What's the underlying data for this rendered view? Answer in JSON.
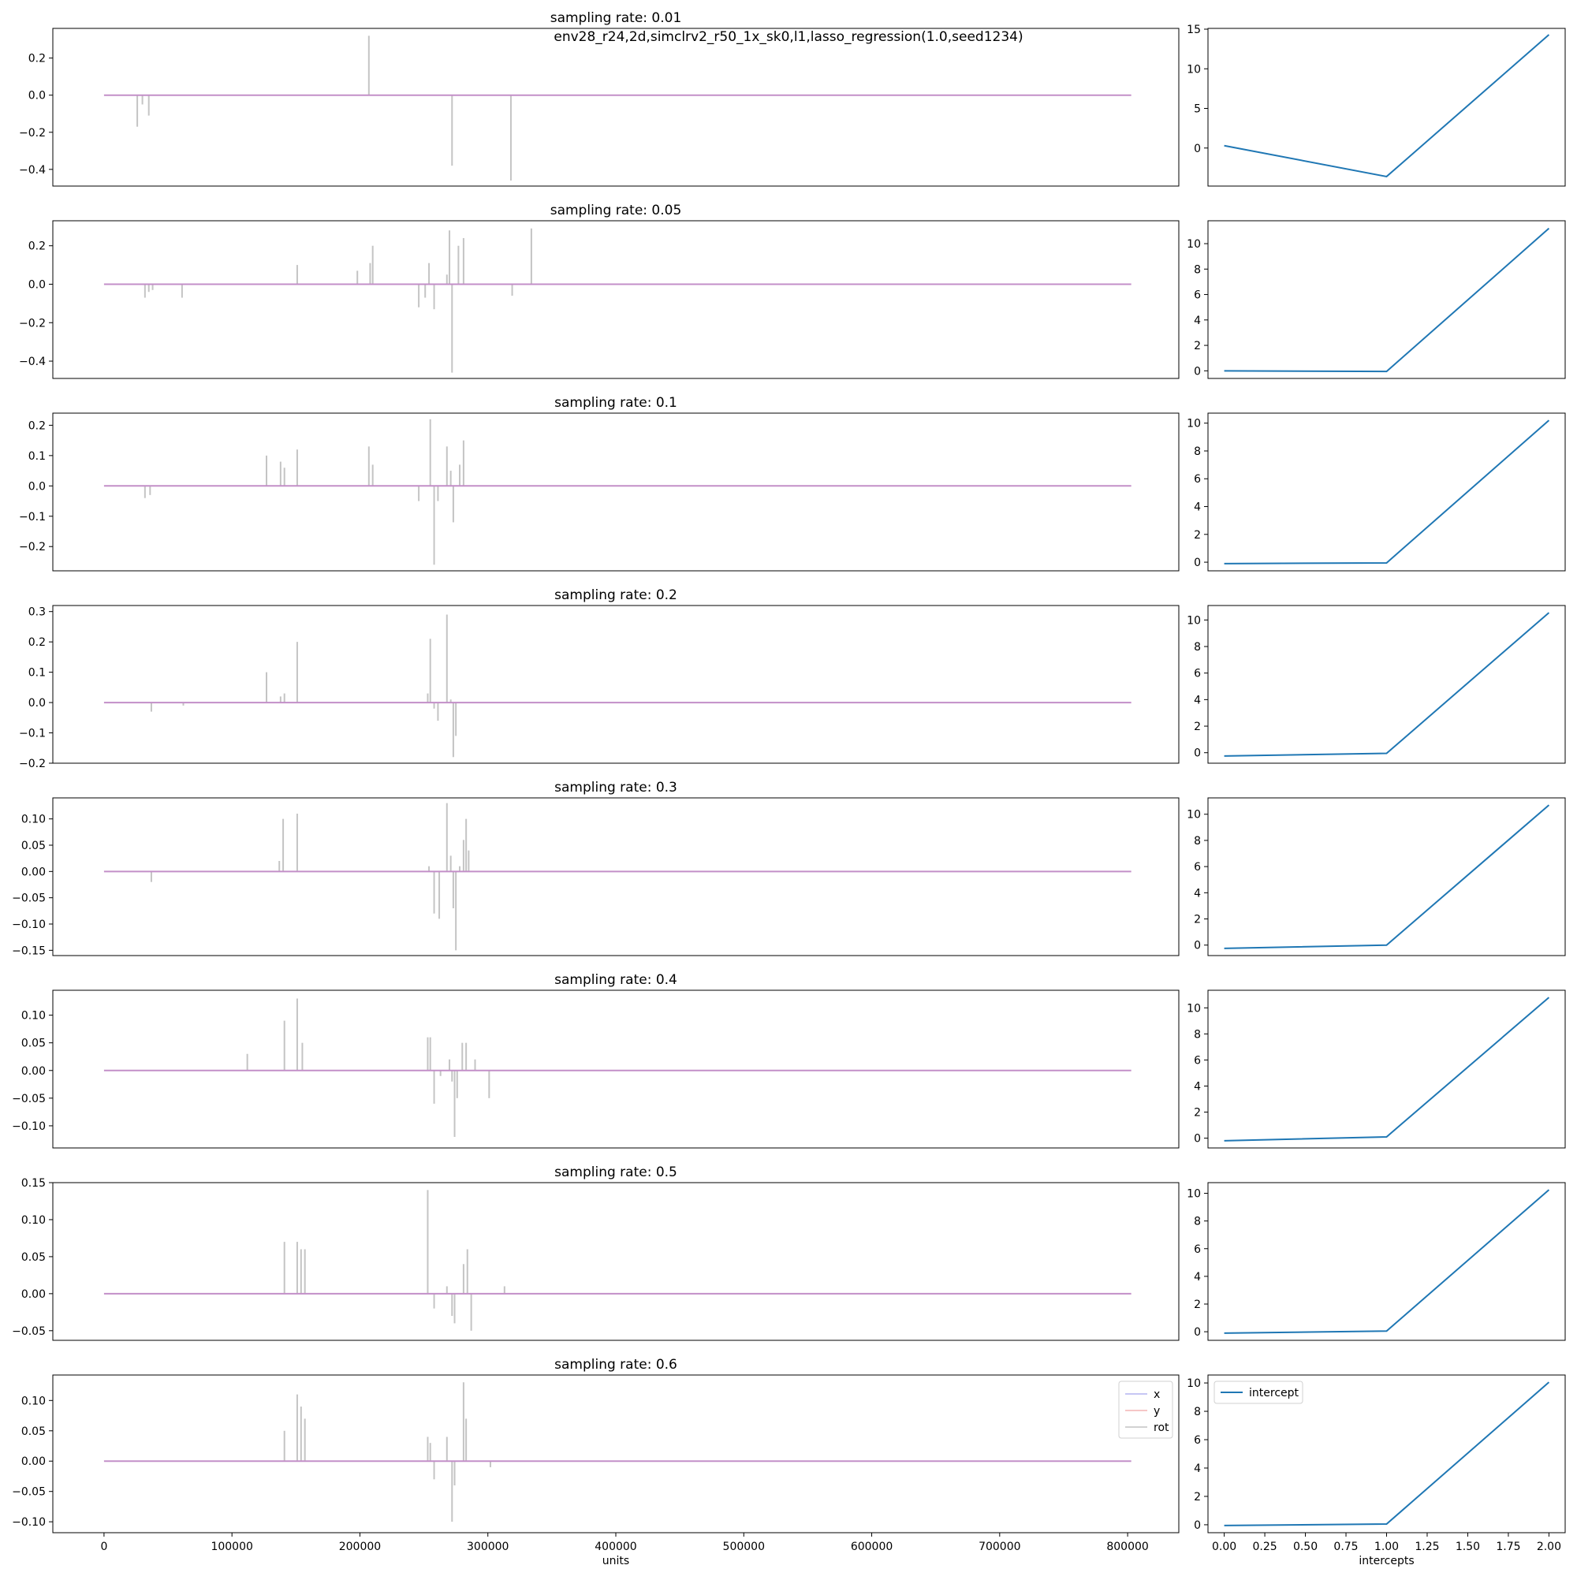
{
  "figure": {
    "suptitle": "env28_r24,2d,simclrv2_r50_1x_sk0,l1,lasso_regression(1.0,seed1234)"
  },
  "colors": {
    "x": "#b4b4f0",
    "y": "#f4b4b4",
    "rot": "#c4c4c4",
    "zero_line": "#c38fc8",
    "intercept": "#1f77b4"
  },
  "chart_data": [
    {
      "type": "line",
      "panel": "weights",
      "title": "sampling rate: 0.01",
      "xlim": [
        -40000,
        840000
      ],
      "ylim": [
        -0.49,
        0.36
      ],
      "yticks": [
        -0.4,
        -0.2,
        0.0,
        0.2
      ],
      "ytick_labels": [
        "−0.4",
        "−0.2",
        "0.0",
        "0.2"
      ],
      "x_range": [
        0,
        802816
      ],
      "spikes": [
        [
          26000,
          -0.17
        ],
        [
          30000,
          -0.05
        ],
        [
          35000,
          -0.11
        ],
        [
          207000,
          0.32
        ],
        [
          272000,
          -0.38
        ],
        [
          318000,
          -0.46
        ]
      ]
    },
    {
      "type": "line",
      "panel": "weights",
      "title": "sampling rate: 0.05",
      "xlim": [
        -40000,
        840000
      ],
      "ylim": [
        -0.49,
        0.33
      ],
      "yticks": [
        -0.4,
        -0.2,
        0.0,
        0.2
      ],
      "ytick_labels": [
        "−0.4",
        "−0.2",
        "0.0",
        "0.2"
      ],
      "x_range": [
        0,
        802816
      ],
      "spikes": [
        [
          32000,
          -0.07
        ],
        [
          35000,
          -0.04
        ],
        [
          38000,
          -0.03
        ],
        [
          61000,
          -0.07
        ],
        [
          151000,
          0.1
        ],
        [
          198000,
          0.07
        ],
        [
          208000,
          0.11
        ],
        [
          210000,
          0.2
        ],
        [
          246000,
          -0.12
        ],
        [
          251000,
          -0.07
        ],
        [
          254000,
          0.11
        ],
        [
          258000,
          -0.13
        ],
        [
          268000,
          0.05
        ],
        [
          270000,
          0.28
        ],
        [
          272000,
          -0.46
        ],
        [
          277000,
          0.2
        ],
        [
          281000,
          0.24
        ],
        [
          319000,
          -0.06
        ],
        [
          334000,
          0.29
        ]
      ]
    },
    {
      "type": "line",
      "panel": "weights",
      "title": "sampling rate: 0.1",
      "xlim": [
        -40000,
        840000
      ],
      "ylim": [
        -0.28,
        0.24
      ],
      "yticks": [
        -0.2,
        -0.1,
        0.0,
        0.1,
        0.2
      ],
      "ytick_labels": [
        "−0.2",
        "−0.1",
        "0.0",
        "0.1",
        "0.2"
      ],
      "x_range": [
        0,
        802816
      ],
      "spikes": [
        [
          32000,
          -0.04
        ],
        [
          36000,
          -0.03
        ],
        [
          127000,
          0.1
        ],
        [
          138000,
          0.08
        ],
        [
          141000,
          0.06
        ],
        [
          151000,
          0.12
        ],
        [
          207000,
          0.13
        ],
        [
          210000,
          0.07
        ],
        [
          246000,
          -0.05
        ],
        [
          255000,
          0.22
        ],
        [
          258000,
          -0.26
        ],
        [
          261000,
          -0.05
        ],
        [
          268000,
          0.13
        ],
        [
          271000,
          0.05
        ],
        [
          273000,
          -0.12
        ],
        [
          278000,
          0.07
        ],
        [
          281000,
          0.15
        ]
      ]
    },
    {
      "type": "line",
      "panel": "weights",
      "title": "sampling rate: 0.2",
      "xlim": [
        -40000,
        840000
      ],
      "ylim": [
        -0.2,
        0.32
      ],
      "yticks": [
        -0.2,
        -0.1,
        0.0,
        0.1,
        0.2,
        0.3
      ],
      "ytick_labels": [
        "−0.2",
        "−0.1",
        "0.0",
        "0.1",
        "0.2",
        "0.3"
      ],
      "x_range": [
        0,
        802816
      ],
      "spikes": [
        [
          37000,
          -0.03
        ],
        [
          62000,
          -0.01
        ],
        [
          127000,
          0.1
        ],
        [
          138000,
          0.02
        ],
        [
          141000,
          0.03
        ],
        [
          151000,
          0.2
        ],
        [
          253000,
          0.03
        ],
        [
          255000,
          0.21
        ],
        [
          258000,
          -0.02
        ],
        [
          261000,
          -0.06
        ],
        [
          268000,
          0.29
        ],
        [
          271000,
          0.01
        ],
        [
          273000,
          -0.18
        ],
        [
          275000,
          -0.11
        ]
      ]
    },
    {
      "type": "line",
      "panel": "weights",
      "title": "sampling rate: 0.3",
      "xlim": [
        -40000,
        840000
      ],
      "ylim": [
        -0.16,
        0.14
      ],
      "yticks": [
        -0.15,
        -0.1,
        -0.05,
        0.0,
        0.05,
        0.1
      ],
      "ytick_labels": [
        "−0.15",
        "−0.10",
        "−0.05",
        "0.00",
        "0.05",
        "0.10"
      ],
      "x_range": [
        0,
        802816
      ],
      "spikes": [
        [
          37000,
          -0.02
        ],
        [
          137000,
          0.02
        ],
        [
          140000,
          0.1
        ],
        [
          151000,
          0.11
        ],
        [
          254000,
          0.01
        ],
        [
          258000,
          -0.08
        ],
        [
          262000,
          -0.09
        ],
        [
          268000,
          0.13
        ],
        [
          271000,
          0.03
        ],
        [
          273000,
          -0.07
        ],
        [
          275000,
          -0.15
        ],
        [
          278000,
          0.01
        ],
        [
          281000,
          0.06
        ],
        [
          283000,
          0.1
        ],
        [
          285000,
          0.04
        ]
      ]
    },
    {
      "type": "line",
      "panel": "weights",
      "title": "sampling rate: 0.4",
      "xlim": [
        -40000,
        840000
      ],
      "ylim": [
        -0.14,
        0.145
      ],
      "yticks": [
        -0.1,
        -0.05,
        0.0,
        0.05,
        0.1
      ],
      "ytick_labels": [
        "−0.10",
        "−0.05",
        "0.00",
        "0.05",
        "0.10"
      ],
      "x_range": [
        0,
        802816
      ],
      "spikes": [
        [
          112000,
          0.03
        ],
        [
          141000,
          0.09
        ],
        [
          151000,
          0.13
        ],
        [
          155000,
          0.05
        ],
        [
          253000,
          0.06
        ],
        [
          255000,
          0.06
        ],
        [
          258000,
          -0.06
        ],
        [
          263000,
          -0.01
        ],
        [
          270000,
          0.02
        ],
        [
          272000,
          -0.02
        ],
        [
          274000,
          -0.12
        ],
        [
          276000,
          -0.05
        ],
        [
          280000,
          0.05
        ],
        [
          283000,
          0.05
        ],
        [
          290000,
          0.02
        ],
        [
          301000,
          -0.05
        ]
      ]
    },
    {
      "type": "line",
      "panel": "weights",
      "title": "sampling rate: 0.5",
      "xlim": [
        -40000,
        840000
      ],
      "ylim": [
        -0.063,
        0.15
      ],
      "yticks": [
        -0.05,
        0.0,
        0.05,
        0.1,
        0.15
      ],
      "ytick_labels": [
        "−0.05",
        "0.00",
        "0.05",
        "0.10",
        "0.15"
      ],
      "x_range": [
        0,
        802816
      ],
      "spikes": [
        [
          141000,
          0.07
        ],
        [
          151000,
          0.07
        ],
        [
          154000,
          0.06
        ],
        [
          157000,
          0.06
        ],
        [
          253000,
          0.14
        ],
        [
          258000,
          -0.02
        ],
        [
          268000,
          0.01
        ],
        [
          272000,
          -0.03
        ],
        [
          274000,
          -0.04
        ],
        [
          281000,
          0.04
        ],
        [
          284000,
          0.06
        ],
        [
          287000,
          -0.05
        ],
        [
          313000,
          0.01
        ]
      ]
    },
    {
      "type": "line",
      "panel": "weights",
      "title": "sampling rate: 0.6",
      "xlim": [
        -40000,
        840000
      ],
      "ylim": [
        -0.118,
        0.142
      ],
      "yticks": [
        -0.1,
        -0.05,
        0.0,
        0.05,
        0.1
      ],
      "ytick_labels": [
        "−0.10",
        "−0.05",
        "0.00",
        "0.05",
        "0.10"
      ],
      "x_range": [
        0,
        802816
      ],
      "spikes": [
        [
          141000,
          0.05
        ],
        [
          151000,
          0.11
        ],
        [
          154000,
          0.09
        ],
        [
          157000,
          0.07
        ],
        [
          253000,
          0.04
        ],
        [
          255000,
          0.03
        ],
        [
          258000,
          -0.03
        ],
        [
          268000,
          0.04
        ],
        [
          272000,
          -0.1
        ],
        [
          274000,
          -0.04
        ],
        [
          281000,
          0.13
        ],
        [
          283000,
          0.07
        ],
        [
          302000,
          -0.01
        ]
      ],
      "xticks": [
        0,
        100000,
        200000,
        300000,
        400000,
        500000,
        600000,
        700000,
        800000
      ],
      "xtick_labels": [
        "0",
        "100000",
        "200000",
        "300000",
        "400000",
        "500000",
        "600000",
        "700000",
        "800000"
      ],
      "xlabel": "units",
      "legend": {
        "position": "upper-right",
        "entries": [
          "x",
          "y",
          "rot"
        ]
      }
    },
    {
      "type": "line",
      "panel": "intercepts",
      "x": [
        0,
        1,
        2
      ],
      "y": [
        0.3,
        -3.6,
        14.3
      ],
      "xlim": [
        -0.1,
        2.1
      ],
      "ylim": [
        -4.8,
        15.1
      ],
      "yticks": [
        0,
        5,
        10,
        15
      ],
      "ytick_labels": [
        "0",
        "5",
        "10",
        "15"
      ]
    },
    {
      "type": "line",
      "panel": "intercepts",
      "x": [
        0,
        1,
        2
      ],
      "y": [
        0.0,
        -0.05,
        11.2
      ],
      "xlim": [
        -0.1,
        2.1
      ],
      "ylim": [
        -0.6,
        11.8
      ],
      "yticks": [
        0,
        2,
        4,
        6,
        8,
        10
      ],
      "ytick_labels": [
        "0",
        "2",
        "4",
        "6",
        "8",
        "10"
      ]
    },
    {
      "type": "line",
      "panel": "intercepts",
      "x": [
        0,
        1,
        2
      ],
      "y": [
        -0.1,
        -0.05,
        10.2
      ],
      "xlim": [
        -0.1,
        2.1
      ],
      "ylim": [
        -0.62,
        10.72
      ],
      "yticks": [
        0,
        2,
        4,
        6,
        8,
        10
      ],
      "ytick_labels": [
        "0",
        "2",
        "4",
        "6",
        "8",
        "10"
      ]
    },
    {
      "type": "line",
      "panel": "intercepts",
      "x": [
        0,
        1,
        2
      ],
      "y": [
        -0.25,
        -0.05,
        10.55
      ],
      "xlim": [
        -0.1,
        2.1
      ],
      "ylim": [
        -0.79,
        11.09
      ],
      "yticks": [
        0,
        2,
        4,
        6,
        8,
        10
      ],
      "ytick_labels": [
        "0",
        "2",
        "4",
        "6",
        "8",
        "10"
      ]
    },
    {
      "type": "line",
      "panel": "intercepts",
      "x": [
        0,
        1,
        2
      ],
      "y": [
        -0.25,
        0.0,
        10.7
      ],
      "xlim": [
        -0.1,
        2.1
      ],
      "ylim": [
        -0.8,
        11.25
      ],
      "yticks": [
        0,
        2,
        4,
        6,
        8,
        10
      ],
      "ytick_labels": [
        "0",
        "2",
        "4",
        "6",
        "8",
        "10"
      ]
    },
    {
      "type": "line",
      "panel": "intercepts",
      "x": [
        0,
        1,
        2
      ],
      "y": [
        -0.2,
        0.1,
        10.8
      ],
      "xlim": [
        -0.1,
        2.1
      ],
      "ylim": [
        -0.75,
        11.35
      ],
      "yticks": [
        0,
        2,
        4,
        6,
        8,
        10
      ],
      "ytick_labels": [
        "0",
        "2",
        "4",
        "6",
        "8",
        "10"
      ]
    },
    {
      "type": "line",
      "panel": "intercepts",
      "x": [
        0,
        1,
        2
      ],
      "y": [
        -0.1,
        0.05,
        10.25
      ],
      "xlim": [
        -0.1,
        2.1
      ],
      "ylim": [
        -0.62,
        10.77
      ],
      "yticks": [
        0,
        2,
        4,
        6,
        8,
        10
      ],
      "ytick_labels": [
        "0",
        "2",
        "4",
        "6",
        "8",
        "10"
      ]
    },
    {
      "type": "line",
      "panel": "intercepts",
      "x": [
        0,
        1,
        2
      ],
      "y": [
        -0.05,
        0.05,
        10.05
      ],
      "xlim": [
        -0.1,
        2.1
      ],
      "ylim": [
        -0.56,
        10.56
      ],
      "yticks": [
        0,
        2,
        4,
        6,
        8,
        10
      ],
      "ytick_labels": [
        "0",
        "2",
        "4",
        "6",
        "8",
        "10"
      ],
      "xticks": [
        0,
        0.25,
        0.5,
        0.75,
        1.0,
        1.25,
        1.5,
        1.75,
        2.0
      ],
      "xtick_labels": [
        "0.00",
        "0.25",
        "0.50",
        "0.75",
        "1.00",
        "1.25",
        "1.50",
        "1.75",
        "2.00"
      ],
      "xlabel": "intercepts",
      "legend": {
        "position": "upper-left",
        "entries": [
          "intercept"
        ]
      }
    }
  ]
}
